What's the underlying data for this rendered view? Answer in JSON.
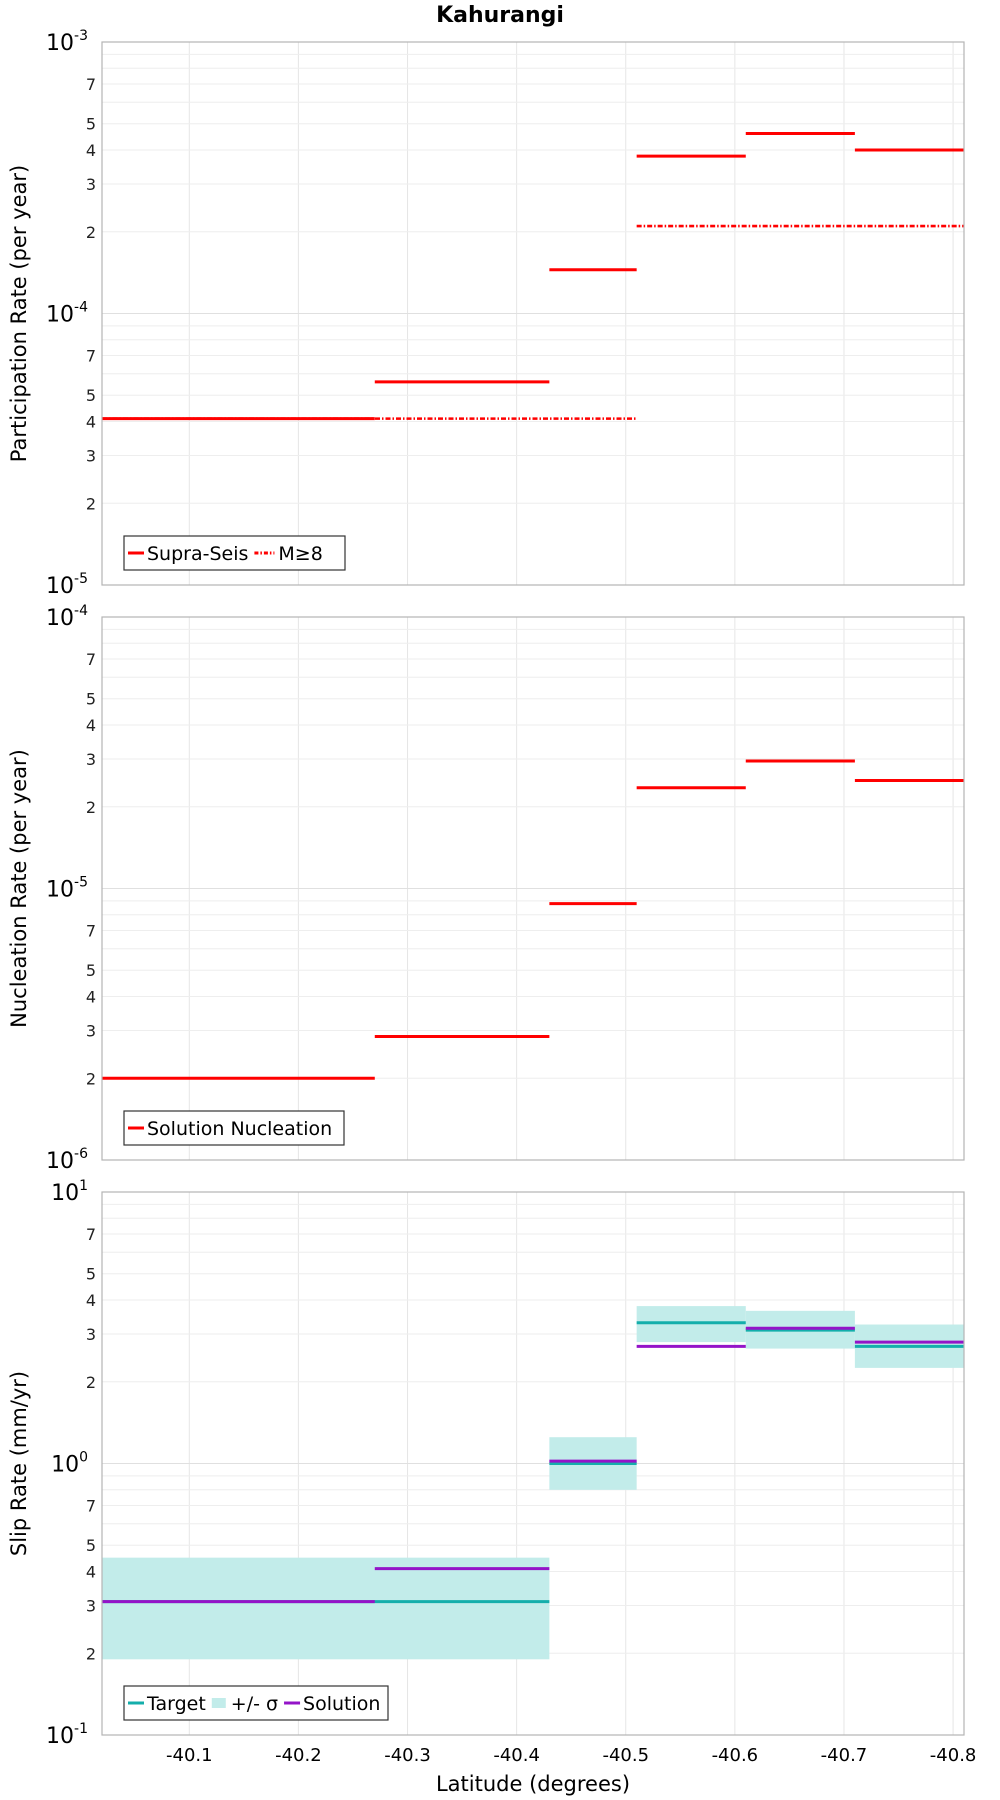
{
  "chart_data": {
    "title": "Kahurangi",
    "xlabel": "Latitude (degrees)",
    "x_ticks": [
      "-40.1",
      "-40.2",
      "-40.3",
      "-40.4",
      "-40.5",
      "-40.6",
      "-40.7",
      "-40.8"
    ],
    "x_tick_values": [
      -40.1,
      -40.2,
      -40.3,
      -40.4,
      -40.5,
      -40.6,
      -40.7,
      -40.8
    ],
    "xlim": [
      -40.02,
      -40.81
    ],
    "panels": [
      {
        "id": "participation",
        "type": "line",
        "ylabel": "Participation Rate (per year)",
        "yscale": "log",
        "ylim": [
          1e-05,
          0.001
        ],
        "major_ticks": [
          {
            "base": "10",
            "exp": "-5",
            "value": 1e-05
          },
          {
            "base": "10",
            "exp": "-4",
            "value": 0.0001
          },
          {
            "base": "10",
            "exp": "-3",
            "value": 0.001
          }
        ],
        "minor_labels": [
          "2",
          "3",
          "4",
          "5",
          "7"
        ],
        "legend": [
          "Supra-Seis",
          "M≥8"
        ],
        "series": [
          {
            "name": "Supra-Seis",
            "style": "solid",
            "color": "#ff0000",
            "segments": [
              {
                "x0": -40.02,
                "x1": -40.27,
                "y": 4.1e-05
              },
              {
                "x0": -40.27,
                "x1": -40.43,
                "y": 5.6e-05
              },
              {
                "x0": -40.43,
                "x1": -40.51,
                "y": 0.000145
              },
              {
                "x0": -40.51,
                "x1": -40.61,
                "y": 0.00038
              },
              {
                "x0": -40.61,
                "x1": -40.71,
                "y": 0.00046
              },
              {
                "x0": -40.71,
                "x1": -40.81,
                "y": 0.0004
              }
            ]
          },
          {
            "name": "M≥8",
            "style": "dashdot",
            "color": "#ff0000",
            "segments": [
              {
                "x0": -40.02,
                "x1": -40.51,
                "y": 4.1e-05
              },
              {
                "x0": -40.51,
                "x1": -40.81,
                "y": 0.00021
              }
            ]
          }
        ]
      },
      {
        "id": "nucleation",
        "type": "line",
        "ylabel": "Nucleation Rate (per year)",
        "yscale": "log",
        "ylim": [
          1e-06,
          0.0001
        ],
        "major_ticks": [
          {
            "base": "10",
            "exp": "-6",
            "value": 1e-06
          },
          {
            "base": "10",
            "exp": "-5",
            "value": 1e-05
          },
          {
            "base": "10",
            "exp": "-4",
            "value": 0.0001
          }
        ],
        "minor_labels": [
          "2",
          "3",
          "4",
          "5",
          "7"
        ],
        "legend": [
          "Solution Nucleation"
        ],
        "series": [
          {
            "name": "Solution Nucleation",
            "style": "solid",
            "color": "#ff0000",
            "segments": [
              {
                "x0": -40.02,
                "x1": -40.27,
                "y": 2e-06
              },
              {
                "x0": -40.27,
                "x1": -40.43,
                "y": 2.85e-06
              },
              {
                "x0": -40.43,
                "x1": -40.51,
                "y": 8.8e-06
              },
              {
                "x0": -40.51,
                "x1": -40.61,
                "y": 2.35e-05
              },
              {
                "x0": -40.61,
                "x1": -40.71,
                "y": 2.95e-05
              },
              {
                "x0": -40.71,
                "x1": -40.81,
                "y": 2.5e-05
              }
            ]
          }
        ]
      },
      {
        "id": "slip",
        "type": "line",
        "ylabel": "Slip Rate (mm/yr)",
        "yscale": "log",
        "ylim": [
          0.1,
          10
        ],
        "major_ticks": [
          {
            "base": "10",
            "exp": "-1",
            "value": 0.1
          },
          {
            "base": "10",
            "exp": "0",
            "value": 1
          },
          {
            "base": "10",
            "exp": "1",
            "value": 10
          }
        ],
        "minor_labels": [
          "2",
          "3",
          "4",
          "5",
          "7"
        ],
        "legend": [
          "Target",
          "+/- σ",
          "Solution"
        ],
        "bands": {
          "name": "+/- σ",
          "color": "#c2ecea",
          "segments": [
            {
              "x0": -40.02,
              "x1": -40.43,
              "lo": 0.19,
              "hi": 0.45
            },
            {
              "x0": -40.43,
              "x1": -40.51,
              "lo": 0.8,
              "hi": 1.25
            },
            {
              "x0": -40.51,
              "x1": -40.61,
              "lo": 2.8,
              "hi": 3.8
            },
            {
              "x0": -40.61,
              "x1": -40.71,
              "lo": 2.65,
              "hi": 3.65
            },
            {
              "x0": -40.71,
              "x1": -40.81,
              "lo": 2.25,
              "hi": 3.25
            }
          ]
        },
        "series": [
          {
            "name": "Target",
            "style": "solid",
            "color": "#14aeab",
            "segments": [
              {
                "x0": -40.02,
                "x1": -40.43,
                "y": 0.31
              },
              {
                "x0": -40.43,
                "x1": -40.51,
                "y": 1.0
              },
              {
                "x0": -40.51,
                "x1": -40.61,
                "y": 3.3
              },
              {
                "x0": -40.61,
                "x1": -40.71,
                "y": 3.1
              },
              {
                "x0": -40.71,
                "x1": -40.81,
                "y": 2.7
              }
            ]
          },
          {
            "name": "Solution",
            "style": "solid",
            "color": "#9414c8",
            "segments": [
              {
                "x0": -40.02,
                "x1": -40.27,
                "y": 0.31
              },
              {
                "x0": -40.27,
                "x1": -40.43,
                "y": 0.41
              },
              {
                "x0": -40.43,
                "x1": -40.51,
                "y": 1.02
              },
              {
                "x0": -40.51,
                "x1": -40.61,
                "y": 2.7
              },
              {
                "x0": -40.61,
                "x1": -40.71,
                "y": 3.15
              },
              {
                "x0": -40.71,
                "x1": -40.81,
                "y": 2.8
              }
            ]
          }
        ]
      }
    ]
  }
}
